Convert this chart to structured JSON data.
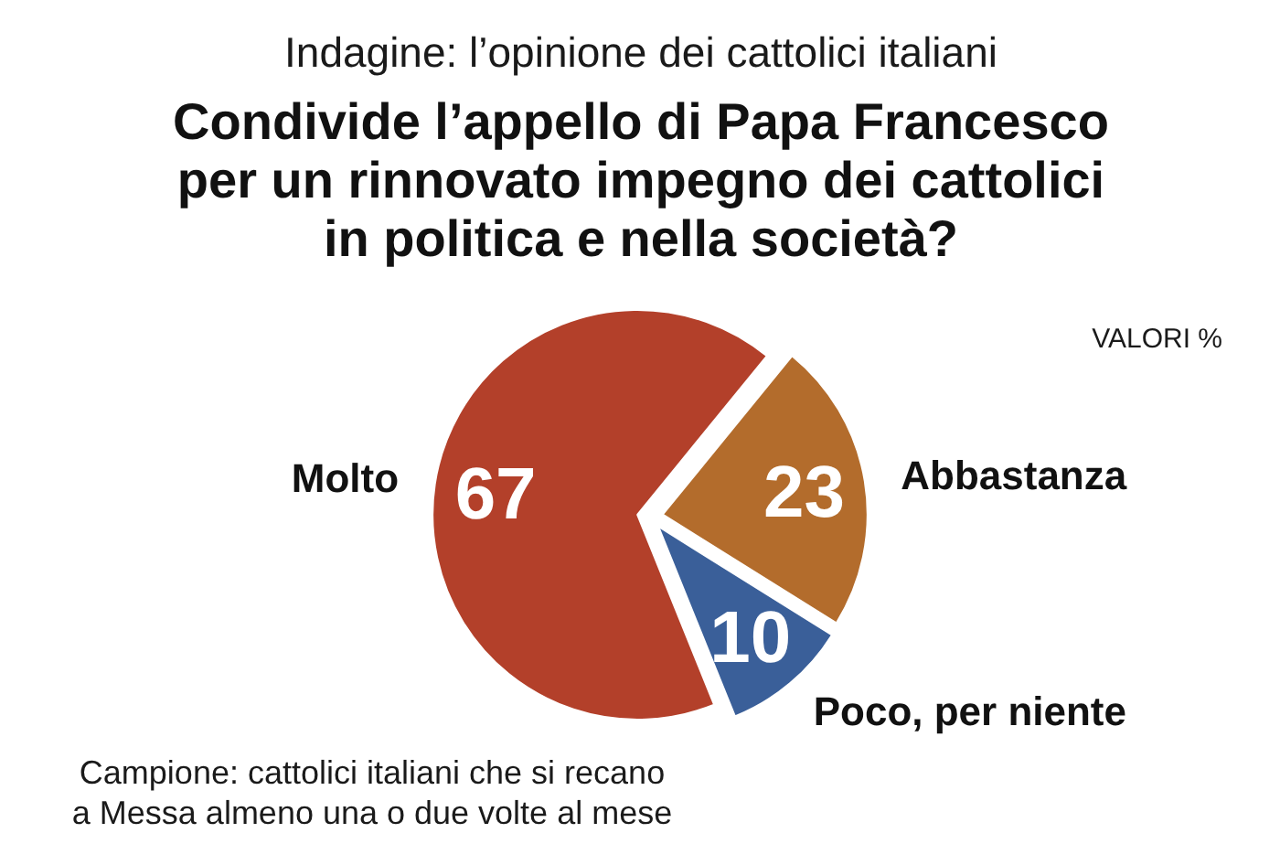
{
  "chart_data": {
    "type": "pie",
    "title": "Indagine: l’opinione dei cattolici italiani",
    "subtitle": "Condivide l’appello di Papa Francesco per un rinnovato impegno dei cattolici in politica e nella società?",
    "categories": [
      "Molto",
      "Abbastanza",
      "Poco, per niente"
    ],
    "values": [
      67,
      23,
      10
    ],
    "colors": [
      "#b3402a",
      "#b36c2c",
      "#3a5f99"
    ],
    "data_labels": true,
    "annotations": [
      "VALORI %",
      "Campione: cattolici italiani che si recano a Messa almeno una o due volte al mese"
    ]
  }
}
